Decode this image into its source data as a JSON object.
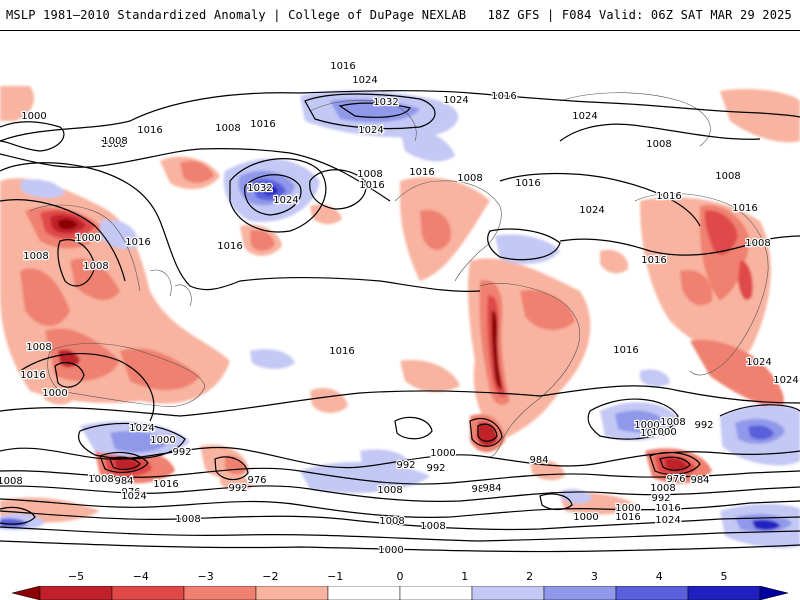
{
  "header": {
    "title": "MSLP 1981–2010 Standardized Anomaly | College of DuPage NEXLAB",
    "run_info": "18Z GFS | F084 Valid: 06Z SAT MAR 29 2025"
  },
  "colorbar": {
    "ticks": [
      "−5",
      "−4",
      "−3",
      "−2",
      "−1",
      "0",
      "1",
      "2",
      "3",
      "4",
      "5"
    ],
    "colors": [
      "#8b0000",
      "#c0202a",
      "#e04848",
      "#f08070",
      "#f8b4a0",
      "#ffffff",
      "#ffffff",
      "#c4c8f4",
      "#9098ea",
      "#5a60dc",
      "#2020c0",
      "#0000a0"
    ]
  },
  "isobar_labels": [
    {
      "text": "1016"
    },
    {
      "text": "1024"
    },
    {
      "text": "1000"
    },
    {
      "text": "1016"
    },
    {
      "text": "1008"
    },
    {
      "text": "1016"
    },
    {
      "text": "1008"
    },
    {
      "text": "1024"
    },
    {
      "text": "1032"
    },
    {
      "text": "1024"
    },
    {
      "text": "1016"
    },
    {
      "text": "1024"
    },
    {
      "text": "1032"
    },
    {
      "text": "1024"
    },
    {
      "text": "1008"
    },
    {
      "text": "1016"
    },
    {
      "text": "1016"
    },
    {
      "text": "1008"
    },
    {
      "text": "1016"
    },
    {
      "text": "1024"
    },
    {
      "text": "1016"
    },
    {
      "text": "1000"
    },
    {
      "text": "1008"
    },
    {
      "text": "1008"
    },
    {
      "text": "1016"
    },
    {
      "text": "1008"
    },
    {
      "text": "1008"
    },
    {
      "text": "1008"
    },
    {
      "text": "1016"
    },
    {
      "text": "1016"
    },
    {
      "text": "1008"
    },
    {
      "text": "1016"
    },
    {
      "text": "1016"
    },
    {
      "text": "1024"
    },
    {
      "text": "1024"
    },
    {
      "text": "1000"
    },
    {
      "text": "992"
    },
    {
      "text": "984"
    },
    {
      "text": "976"
    },
    {
      "text": "1008"
    },
    {
      "text": "1016"
    },
    {
      "text": "1024"
    },
    {
      "text": "976"
    },
    {
      "text": "992"
    },
    {
      "text": "1016"
    },
    {
      "text": "1000"
    },
    {
      "text": "1008"
    },
    {
      "text": "1000"
    },
    {
      "text": "992"
    },
    {
      "text": "984"
    },
    {
      "text": "992"
    },
    {
      "text": "984"
    },
    {
      "text": "1008"
    },
    {
      "text": "1000"
    },
    {
      "text": "1008"
    },
    {
      "text": "1024"
    },
    {
      "text": "1008"
    },
    {
      "text": "992"
    },
    {
      "text": "1000"
    },
    {
      "text": "976"
    },
    {
      "text": "984"
    },
    {
      "text": "992"
    },
    {
      "text": "1008"
    },
    {
      "text": "1000"
    },
    {
      "text": "1016"
    },
    {
      "text": "1024"
    },
    {
      "text": "1000"
    },
    {
      "text": "1008"
    },
    {
      "text": "1008"
    },
    {
      "text": "984"
    },
    {
      "text": "1008"
    },
    {
      "text": "1000"
    },
    {
      "text": "1016"
    },
    {
      "text": "1016"
    },
    {
      "text": "1008"
    }
  ]
}
